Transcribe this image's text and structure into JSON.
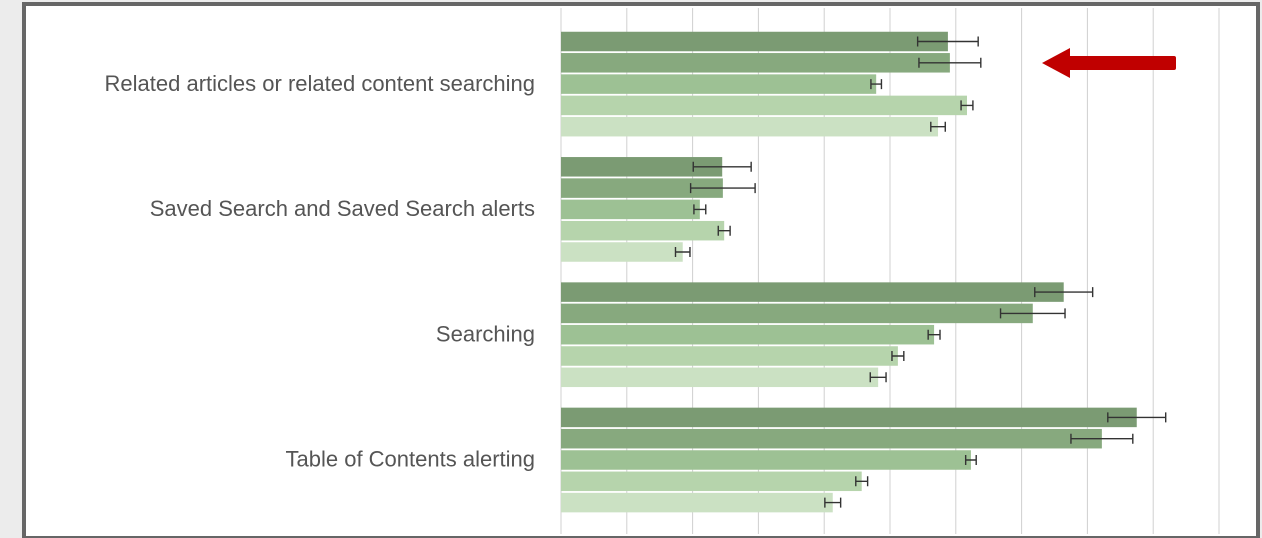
{
  "chart_data": {
    "type": "bar",
    "orientation": "horizontal",
    "categories": [
      "Related articles or related content searching",
      "Saved Search and Saved Search alerts",
      "Searching",
      "Table of Contents alerting"
    ],
    "series": [
      {
        "color": "#7b9b73",
        "values": [
          5.88,
          2.45,
          7.64,
          8.75
        ],
        "errors": [
          0.46,
          0.44,
          0.44,
          0.44
        ]
      },
      {
        "color": "#87a97e",
        "values": [
          5.91,
          2.46,
          7.17,
          8.22
        ],
        "errors": [
          0.47,
          0.49,
          0.49,
          0.47
        ]
      },
      {
        "color": "#9dc194",
        "values": [
          4.79,
          2.11,
          5.67,
          6.23
        ],
        "errors": [
          0.08,
          0.09,
          0.09,
          0.08
        ]
      },
      {
        "color": "#b6d4ac",
        "values": [
          6.17,
          2.48,
          5.12,
          4.57
        ],
        "errors": [
          0.09,
          0.09,
          0.09,
          0.09
        ]
      },
      {
        "color": "#cbe1c3",
        "values": [
          5.73,
          1.85,
          4.82,
          4.13
        ],
        "errors": [
          0.11,
          0.11,
          0.12,
          0.12
        ]
      }
    ],
    "xlim": [
      0,
      10.5
    ],
    "xticks": [
      0,
      1,
      2,
      3,
      4,
      5,
      6,
      7,
      8,
      9,
      10
    ],
    "grid": true
  }
}
